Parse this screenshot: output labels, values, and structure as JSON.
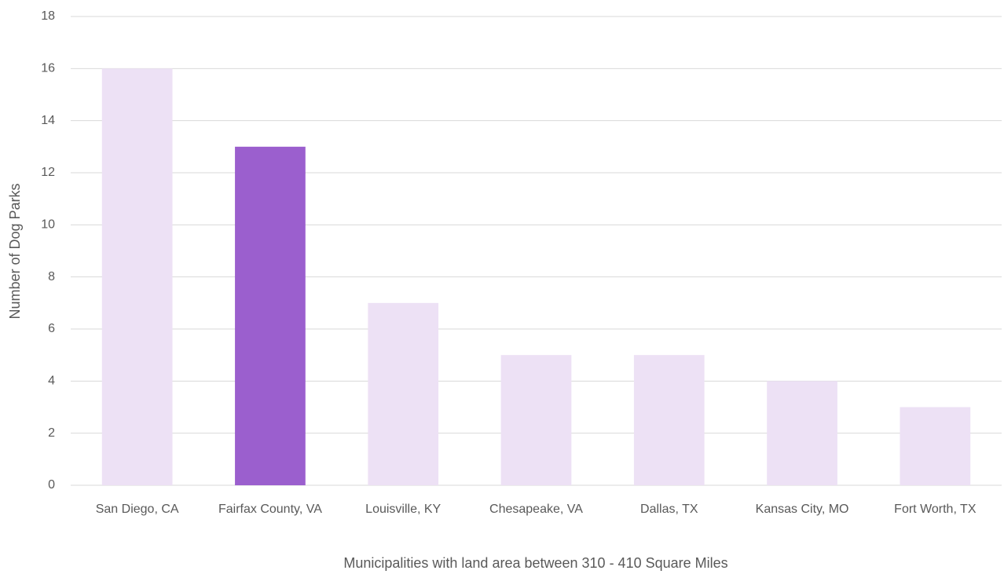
{
  "chart_data": {
    "type": "bar",
    "x_label": "Municipalities with land area between 310 - 410 Square Miles",
    "y_label": "Number of Dog Parks",
    "categories": [
      "San Diego, CA",
      "Fairfax County, VA",
      "Louisville, KY",
      "Chesapeake, VA",
      "Dallas, TX",
      "Kansas City, MO",
      "Fort Worth, TX"
    ],
    "values": [
      16,
      13,
      7,
      5,
      5,
      4,
      3
    ],
    "colors": [
      "#ede1f5",
      "#9b5fce",
      "#ede1f5",
      "#ede1f5",
      "#ede1f5",
      "#ede1f5",
      "#ede1f5"
    ],
    "ylim": [
      0,
      18
    ],
    "yticks": [
      0,
      2,
      4,
      6,
      8,
      10,
      12,
      14,
      16,
      18
    ],
    "grid": true
  }
}
